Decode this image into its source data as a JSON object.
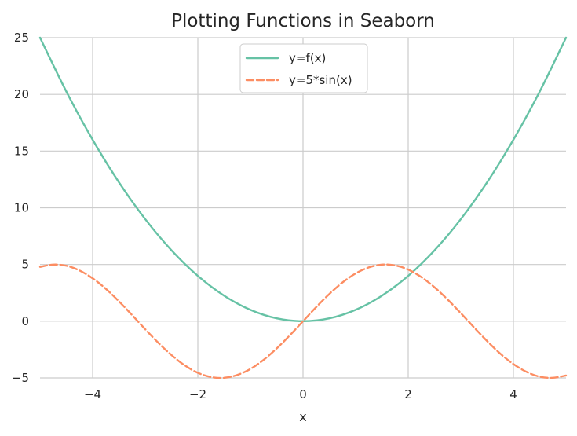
{
  "chart_data": {
    "type": "line",
    "title": "Plotting Functions in Seaborn",
    "xlabel": "x",
    "ylabel": "",
    "xlim": [
      -5,
      5
    ],
    "ylim": [
      -5,
      25
    ],
    "xticks": [
      -4,
      -2,
      0,
      2,
      4
    ],
    "xtick_labels": [
      "−4",
      "−2",
      "0",
      "2",
      "4"
    ],
    "yticks": [
      -5,
      0,
      5,
      10,
      15,
      20,
      25
    ],
    "ytick_labels": [
      "−5",
      "0",
      "5",
      "10",
      "15",
      "20",
      "25"
    ],
    "grid": true,
    "legend_position": "top-center",
    "series": [
      {
        "name": "y=f(x)",
        "color": "#66c2a5",
        "line_style": "solid",
        "x": [
          -5,
          -4.5,
          -4,
          -3.5,
          -3,
          -2.5,
          -2,
          -1.5,
          -1,
          -0.5,
          0,
          0.5,
          1,
          1.5,
          2,
          2.5,
          3,
          3.5,
          4,
          4.5,
          5
        ],
        "values": [
          25,
          20.25,
          16,
          12.25,
          9,
          6.25,
          4,
          2.25,
          1,
          0.25,
          0,
          0.25,
          1,
          2.25,
          4,
          6.25,
          9,
          12.25,
          16,
          20.25,
          25
        ]
      },
      {
        "name": "y=5*sin(x)",
        "color": "#fc8d62",
        "line_style": "dashed",
        "x": [
          -5,
          -4.75,
          -4.5,
          -4.25,
          -4,
          -3.75,
          -3.5,
          -3.25,
          -3,
          -2.75,
          -2.5,
          -2.25,
          -2,
          -1.75,
          -1.5,
          -1.25,
          -1,
          -0.75,
          -0.5,
          -0.25,
          0,
          0.25,
          0.5,
          0.75,
          1,
          1.25,
          1.5,
          1.75,
          2,
          2.25,
          2.5,
          2.75,
          3,
          3.25,
          3.5,
          3.75,
          4,
          4.25,
          4.5,
          4.75,
          5
        ],
        "values": [
          4.79,
          4.99,
          4.89,
          4.47,
          3.78,
          2.86,
          1.75,
          0.54,
          -0.71,
          -1.91,
          -2.99,
          -3.89,
          -4.55,
          -4.92,
          -4.99,
          -4.74,
          -4.21,
          -3.41,
          -2.4,
          -1.24,
          0,
          1.24,
          2.4,
          3.41,
          4.21,
          4.74,
          4.99,
          4.92,
          4.55,
          3.89,
          2.99,
          1.91,
          0.71,
          -0.54,
          -1.75,
          -2.86,
          -3.78,
          -4.47,
          -4.89,
          -4.99,
          -4.79
        ]
      }
    ]
  },
  "colors": {
    "background": "#ffffff",
    "grid": "#cccccc",
    "text": "#262626",
    "legend_border": "#cccccc"
  }
}
